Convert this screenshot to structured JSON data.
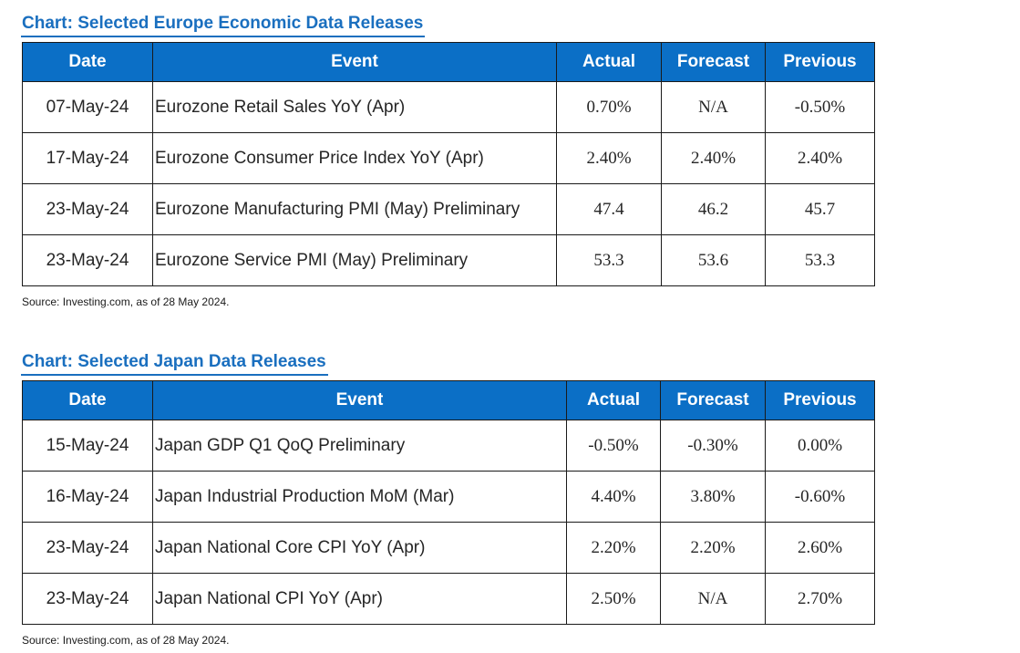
{
  "europe": {
    "title": "Chart: Selected Europe Economic Data Releases",
    "headers": {
      "date": "Date",
      "event": "Event",
      "actual": "Actual",
      "forecast": "Forecast",
      "previous": "Previous"
    },
    "rows": [
      {
        "date": "07-May-24",
        "event": "Eurozone Retail Sales YoY (Apr)",
        "actual": "0.70%",
        "forecast": "N/A",
        "previous": "-0.50%"
      },
      {
        "date": "17-May-24",
        "event": "Eurozone Consumer Price Index YoY (Apr)",
        "actual": "2.40%",
        "forecast": "2.40%",
        "previous": "2.40%"
      },
      {
        "date": "23-May-24",
        "event": "Eurozone Manufacturing PMI (May) Preliminary",
        "actual": "47.4",
        "forecast": "46.2",
        "previous": "45.7"
      },
      {
        "date": "23-May-24",
        "event": "Eurozone Service PMI (May) Preliminary",
        "actual": "53.3",
        "forecast": "53.6",
        "previous": "53.3"
      }
    ],
    "source": "Source: Investing.com, as of 28 May 2024."
  },
  "japan": {
    "title": "Chart: Selected Japan Data Releases",
    "headers": {
      "date": "Date",
      "event": "Event",
      "actual": "Actual",
      "forecast": "Forecast",
      "previous": "Previous"
    },
    "rows": [
      {
        "date": "15-May-24",
        "event": "Japan GDP Q1 QoQ Preliminary",
        "actual": "-0.50%",
        "forecast": "-0.30%",
        "previous": "0.00%"
      },
      {
        "date": "16-May-24",
        "event": "Japan Industrial Production MoM (Mar)",
        "actual": "4.40%",
        "forecast": "3.80%",
        "previous": "-0.60%"
      },
      {
        "date": "23-May-24",
        "event": "Japan National Core CPI YoY (Apr)",
        "actual": "2.20%",
        "forecast": "2.20%",
        "previous": "2.60%"
      },
      {
        "date": "23-May-24",
        "event": "Japan National CPI YoY (Apr)",
        "actual": "2.50%",
        "forecast": "N/A",
        "previous": "2.70%"
      }
    ],
    "source": "Source: Investing.com, as of 28 May 2024."
  },
  "colors": {
    "title": "#1a6fbf",
    "header_bg": "#0b6fc6",
    "header_text": "#ffffff",
    "border": "#1a1a1a"
  }
}
